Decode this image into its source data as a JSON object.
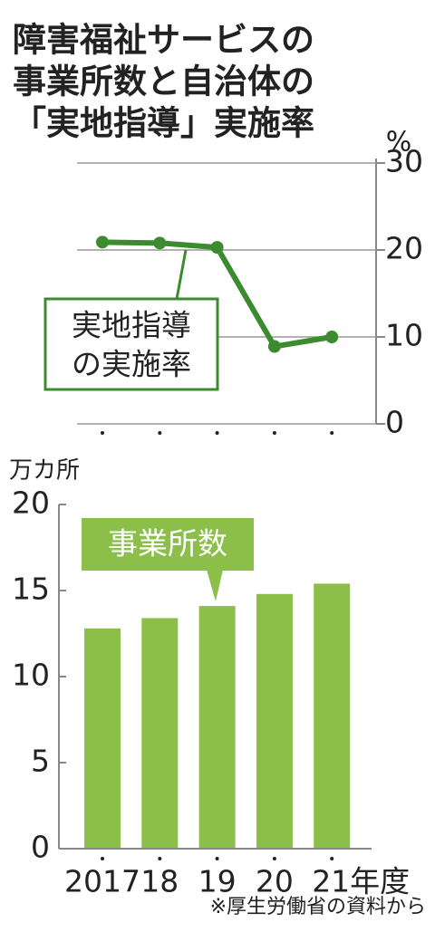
{
  "title": [
    "障害福祉サービスの",
    "事業所数と自治体の",
    "「実地指導」実施率"
  ],
  "source": "※厚生労働省の資料から",
  "chart_data": [
    {
      "type": "line",
      "categories": [
        null,
        null,
        null,
        null,
        null
      ],
      "values": [
        20.9,
        20.8,
        20.3,
        8.9,
        10.0
      ],
      "color": "#3d8b2f",
      "ylim": [
        0,
        30
      ],
      "yticks": [
        0,
        10,
        20,
        30
      ],
      "y_label": "%",
      "grid": true,
      "annotation": [
        "実地指導",
        "の実施率"
      ]
    },
    {
      "type": "bar",
      "categories": [
        "2017",
        "18",
        "19",
        "20",
        "21年度"
      ],
      "values": [
        12.8,
        13.4,
        14.1,
        14.8,
        15.4
      ],
      "color": "#8cbf4a",
      "ylim": [
        0,
        20
      ],
      "yticks": [
        0,
        5,
        10,
        15,
        20
      ],
      "y_label": "万カ所",
      "grid": false,
      "annotation": "事業所数"
    }
  ]
}
